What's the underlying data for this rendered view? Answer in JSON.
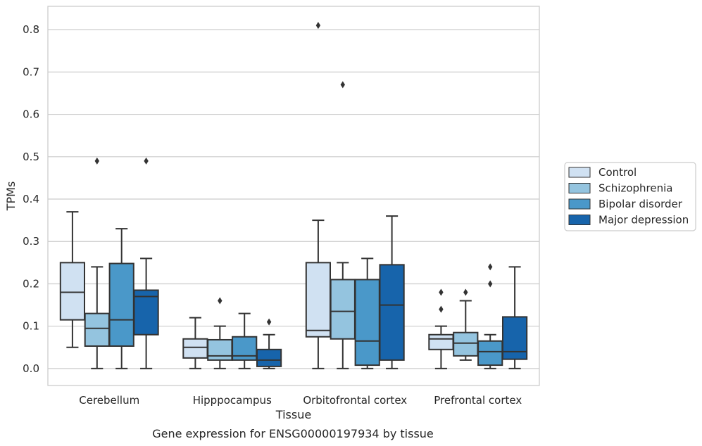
{
  "chart_data": {
    "type": "box",
    "title": "",
    "caption": "Gene expression for ENSG00000197934 by tissue",
    "xlabel": "Tissue",
    "ylabel": "TPMs",
    "ylim": [
      -0.04,
      0.855
    ],
    "yticks": [
      0.0,
      0.1,
      0.2,
      0.3,
      0.4,
      0.5,
      0.6,
      0.7,
      0.8
    ],
    "ytick_labels": [
      "0.0",
      "0.1",
      "0.2",
      "0.3",
      "0.4",
      "0.5",
      "0.6",
      "0.7",
      "0.8"
    ],
    "grid": "horizontal",
    "legend_position": "outside-right",
    "categories": [
      "Cerebellum",
      "Hipppocampus",
      "Orbitofrontal cortex",
      "Prefrontal cortex"
    ],
    "series": [
      {
        "name": "Control",
        "color": "#d0e1f2",
        "boxes": [
          {
            "whisker_low": 0.05,
            "q1": 0.115,
            "median": 0.18,
            "q3": 0.25,
            "whisker_high": 0.37,
            "outliers": []
          },
          {
            "whisker_low": 0.0,
            "q1": 0.025,
            "median": 0.05,
            "q3": 0.07,
            "whisker_high": 0.12,
            "outliers": []
          },
          {
            "whisker_low": 0.0,
            "q1": 0.075,
            "median": 0.09,
            "q3": 0.25,
            "whisker_high": 0.35,
            "outliers": [
              0.81
            ]
          },
          {
            "whisker_low": 0.0,
            "q1": 0.045,
            "median": 0.07,
            "q3": 0.08,
            "whisker_high": 0.1,
            "outliers": [
              0.14,
              0.18
            ]
          }
        ]
      },
      {
        "name": "Schizophrenia",
        "color": "#94c4df",
        "boxes": [
          {
            "whisker_low": 0.0,
            "q1": 0.053,
            "median": 0.095,
            "q3": 0.13,
            "whisker_high": 0.24,
            "outliers": [
              0.49
            ]
          },
          {
            "whisker_low": 0.0,
            "q1": 0.02,
            "median": 0.03,
            "q3": 0.068,
            "whisker_high": 0.1,
            "outliers": [
              0.16
            ]
          },
          {
            "whisker_low": 0.0,
            "q1": 0.07,
            "median": 0.135,
            "q3": 0.21,
            "whisker_high": 0.25,
            "outliers": [
              0.67
            ]
          },
          {
            "whisker_low": 0.02,
            "q1": 0.03,
            "median": 0.06,
            "q3": 0.085,
            "whisker_high": 0.16,
            "outliers": [
              0.18
            ]
          }
        ]
      },
      {
        "name": "Bipolar disorder",
        "color": "#4a98c9",
        "boxes": [
          {
            "whisker_low": 0.0,
            "q1": 0.053,
            "median": 0.115,
            "q3": 0.248,
            "whisker_high": 0.33,
            "outliers": []
          },
          {
            "whisker_low": 0.0,
            "q1": 0.02,
            "median": 0.03,
            "q3": 0.075,
            "whisker_high": 0.13,
            "outliers": []
          },
          {
            "whisker_low": 0.0,
            "q1": 0.008,
            "median": 0.065,
            "q3": 0.21,
            "whisker_high": 0.26,
            "outliers": []
          },
          {
            "whisker_low": 0.0,
            "q1": 0.008,
            "median": 0.04,
            "q3": 0.065,
            "whisker_high": 0.08,
            "outliers": [
              0.2,
              0.24
            ]
          }
        ]
      },
      {
        "name": "Major depression",
        "color": "#1764ab",
        "boxes": [
          {
            "whisker_low": 0.0,
            "q1": 0.08,
            "median": 0.17,
            "q3": 0.185,
            "whisker_high": 0.26,
            "outliers": [
              0.49
            ]
          },
          {
            "whisker_low": 0.0,
            "q1": 0.005,
            "median": 0.02,
            "q3": 0.045,
            "whisker_high": 0.08,
            "outliers": [
              0.11
            ]
          },
          {
            "whisker_low": 0.0,
            "q1": 0.02,
            "median": 0.15,
            "q3": 0.245,
            "whisker_high": 0.36,
            "outliers": []
          },
          {
            "whisker_low": 0.0,
            "q1": 0.022,
            "median": 0.04,
            "q3": 0.122,
            "whisker_high": 0.24,
            "outliers": []
          }
        ]
      }
    ]
  }
}
